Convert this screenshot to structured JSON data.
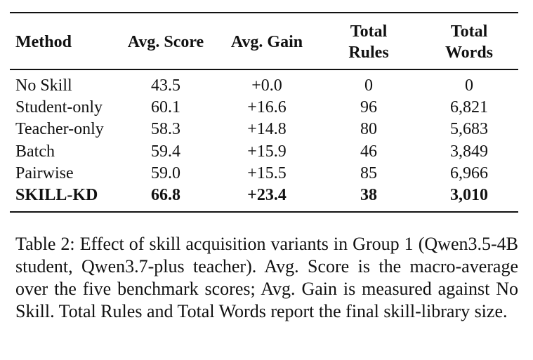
{
  "table": {
    "header": [
      "Method",
      "Avg. Score",
      "Avg. Gain",
      "Total Rules",
      "Total Words"
    ],
    "rows": [
      [
        "No Skill",
        "43.5",
        "+0.0",
        "0",
        "0"
      ],
      [
        "Student-only",
        "60.1",
        "+16.6",
        "96",
        "6,821"
      ],
      [
        "Teacher-only",
        "58.3",
        "+14.8",
        "80",
        "5,683"
      ],
      [
        "Batch",
        "59.4",
        "+15.9",
        "46",
        "3,849"
      ],
      [
        "Pairwise",
        "59.0",
        "+15.5",
        "85",
        "6,966"
      ],
      [
        "SKILL-KD",
        "66.8",
        "+23.4",
        "38",
        "3,010"
      ]
    ]
  },
  "caption": "Table 2: Effect of skill acquisition variants in Group 1 (Qwen3.5-4B student, Qwen3.7-plus teacher). Avg. Score is the macro-average over the five benchmark scores; Avg. Gain is measured against No Skill. Total Rules and Total Words report the final skill-library size."
}
